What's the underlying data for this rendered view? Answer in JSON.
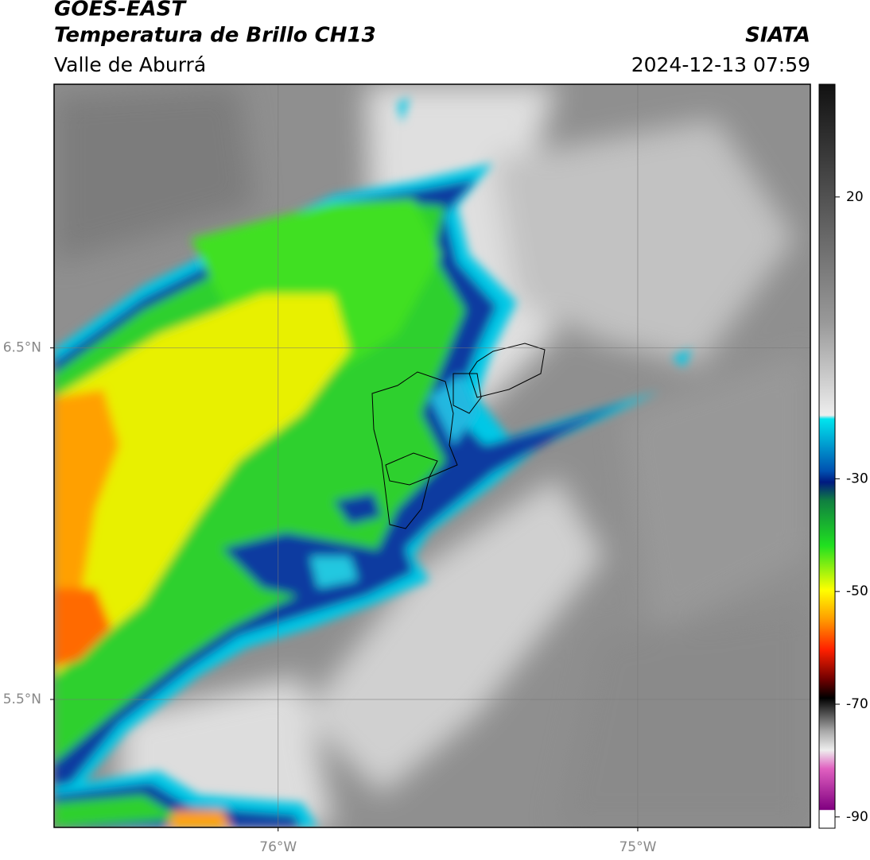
{
  "header": {
    "title": "GOES-EAST",
    "subtitle": "Temperatura de Brillo CH13",
    "region": "Valle de Aburrá",
    "source": "SIATA",
    "datetime": "2024-12-13 07:59"
  },
  "map": {
    "latlim": [
      5.136,
      7.25
    ],
    "lonlim": [
      -76.623,
      -74.52
    ],
    "lat_ticks": [
      {
        "value": 6.5,
        "label": "6.5°N"
      },
      {
        "value": 5.5,
        "label": "5.5°N"
      }
    ],
    "lon_ticks": [
      {
        "value": -76,
        "label": "76°W"
      },
      {
        "value": -75,
        "label": "75°W"
      }
    ]
  },
  "colorbar": {
    "lim": [
      -92,
      40
    ],
    "ticks": [
      20,
      -30,
      -50,
      -70,
      -90
    ]
  }
}
